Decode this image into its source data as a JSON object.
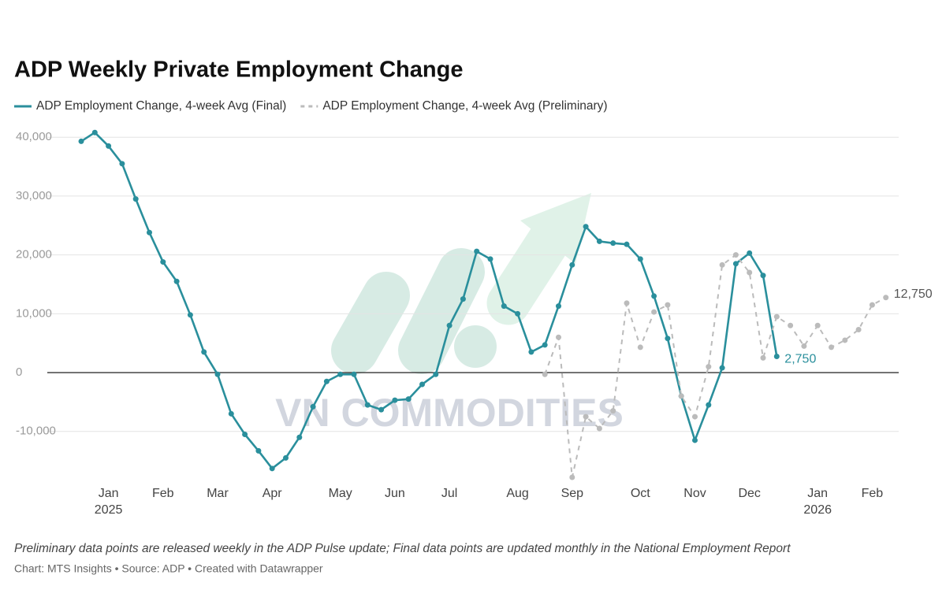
{
  "chart_data": {
    "type": "line",
    "title": "ADP Weekly Private Employment Change",
    "watermark": "VN COMMODITIES",
    "note": "Preliminary data points are released weekly in the ADP Pulse update; Final data points are updated monthly in the National Employment Report",
    "source": "Chart: MTS Insights • Source: ADP • Created with Datawrapper",
    "categories": [
      null,
      null,
      "Jan\n2025",
      null,
      null,
      null,
      "Feb",
      null,
      null,
      null,
      "Mar",
      null,
      null,
      null,
      "Apr",
      null,
      null,
      null,
      null,
      "May",
      null,
      null,
      null,
      "Jun",
      null,
      null,
      null,
      "Jul",
      null,
      null,
      null,
      null,
      "Aug",
      null,
      null,
      null,
      "Sep",
      null,
      null,
      null,
      null,
      "Oct",
      null,
      null,
      null,
      "Nov",
      null,
      null,
      null,
      "Dec",
      null,
      null,
      null,
      null,
      "Jan\n2026",
      null,
      null,
      null,
      "Feb",
      null
    ],
    "series": [
      {
        "name": "ADP Employment Change, 4-week Avg (Final)",
        "color": "#2a8f9c",
        "dashed": false,
        "values": [
          39300,
          40800,
          38500,
          35500,
          29500,
          23800,
          18800,
          15500,
          9800,
          3500,
          -300,
          -7000,
          -10500,
          -13300,
          -16300,
          -14500,
          -11000,
          -5800,
          -1500,
          -300,
          -300,
          -5500,
          -6300,
          -4700,
          -4500,
          -2000,
          -300,
          8000,
          12500,
          20600,
          19300,
          11300,
          10000,
          3500,
          4700,
          11300,
          18300,
          24800,
          22300,
          22000,
          21800,
          19300,
          13000,
          5800,
          -4000,
          -11500,
          -5500,
          800,
          18500,
          20300,
          16500,
          2750,
          null,
          null,
          null,
          null,
          null,
          null,
          null,
          null
        ],
        "value_labels": [
          null,
          null,
          null,
          null,
          null,
          null,
          null,
          null,
          null,
          null,
          null,
          null,
          null,
          null,
          null,
          null,
          null,
          null,
          null,
          null,
          null,
          null,
          null,
          null,
          null,
          null,
          null,
          null,
          null,
          null,
          null,
          null,
          null,
          null,
          null,
          null,
          null,
          null,
          null,
          null,
          null,
          null,
          null,
          null,
          null,
          null,
          null,
          null,
          null,
          null,
          null,
          "2,750",
          null,
          null,
          null,
          null,
          null,
          null,
          null,
          null
        ]
      },
      {
        "name": "ADP Employment Change, 4-week Avg (Preliminary)",
        "color": "#bbbbbb",
        "dashed": true,
        "values": [
          null,
          null,
          null,
          null,
          null,
          null,
          null,
          null,
          null,
          null,
          null,
          null,
          null,
          null,
          null,
          null,
          null,
          null,
          null,
          null,
          null,
          null,
          null,
          null,
          null,
          null,
          null,
          null,
          null,
          null,
          null,
          null,
          null,
          null,
          -300,
          6000,
          -17800,
          -7500,
          -9500,
          -6500,
          11800,
          4300,
          10300,
          11500,
          -4000,
          -7500,
          1000,
          18300,
          20000,
          17000,
          2500,
          9500,
          8000,
          4500,
          8000,
          4300,
          5500,
          7300,
          11500,
          12750
        ],
        "value_labels": [
          null,
          null,
          null,
          null,
          null,
          null,
          null,
          null,
          null,
          null,
          null,
          null,
          null,
          null,
          null,
          null,
          null,
          null,
          null,
          null,
          null,
          null,
          null,
          null,
          null,
          null,
          null,
          null,
          null,
          null,
          null,
          null,
          null,
          null,
          null,
          null,
          null,
          null,
          null,
          null,
          null,
          null,
          null,
          null,
          null,
          null,
          null,
          null,
          null,
          null,
          null,
          null,
          null,
          null,
          null,
          null,
          null,
          null,
          null,
          "12,750"
        ]
      }
    ],
    "ylim": [
      -18600,
      41900
    ],
    "yticks": [
      {
        "value": -10000,
        "label": "-10,000"
      },
      0,
      {
        "value": 10000,
        "label": "10,000"
      },
      {
        "value": 20000,
        "label": "20,000"
      },
      {
        "value": 30000,
        "label": "30,000"
      },
      {
        "value": 40000,
        "label": "40,000"
      }
    ],
    "grid": true
  }
}
